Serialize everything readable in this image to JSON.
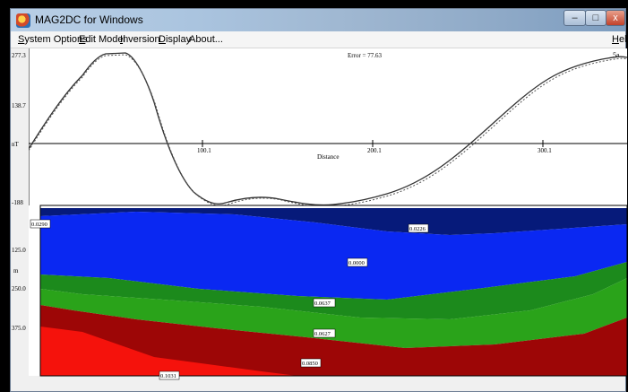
{
  "window": {
    "title": "MAG2DC for Windows",
    "buttons": {
      "minimize": "–",
      "maximize": "□",
      "close": "x"
    }
  },
  "menu": {
    "items": [
      {
        "mnemonic": "S",
        "rest": "ystem Options"
      },
      {
        "mnemonic": "E",
        "rest": "dit Model"
      },
      {
        "mnemonic": "I",
        "rest": "nversion"
      },
      {
        "mnemonic": "D",
        "rest": "isplay"
      },
      {
        "mnemonic": "",
        "rest": "About..."
      }
    ],
    "help": {
      "mnemonic": "H",
      "rest": "elp"
    }
  },
  "profile_plot": {
    "error_label": "Error = 77.63",
    "y_ticks": [
      "277.3",
      "138.7",
      "nT",
      "-188"
    ],
    "x_ticks": [
      "100.1",
      "200.1",
      "300.1"
    ],
    "x_label": "Distance",
    "corner_label": "5a"
  },
  "model_section": {
    "y_ticks": [
      "125.0",
      "m",
      "250.0",
      "375.0"
    ],
    "body_labels": [
      "0.0290",
      "0.0226",
      "0.0000",
      "0.0637",
      "0.0627",
      "0.0850",
      "0.1031"
    ],
    "colors": {
      "dark_blue": "#061a7a",
      "blue": "#0a28f2",
      "green1": "#1c8a1c",
      "green2": "#2aa31a",
      "dark_red": "#9d0606",
      "red": "#f5120c"
    }
  },
  "chart_data": {
    "type": "line",
    "x_ticks": [
      100.1,
      200.1,
      300.1
    ],
    "y_ticks": [
      277.3,
      138.7,
      -188
    ],
    "series": [
      {
        "values_observed": "curve"
      },
      {
        "values_calculated": "dashed curve"
      }
    ]
  }
}
